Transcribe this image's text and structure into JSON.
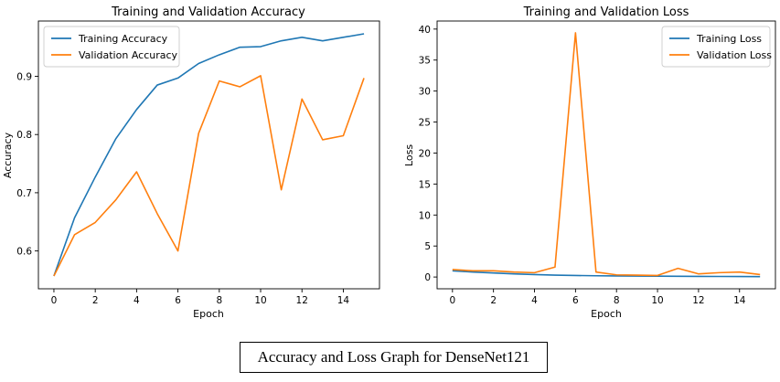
{
  "caption": "Accuracy and Loss Graph for DenseNet121",
  "colors": {
    "training": "#1f77b4",
    "validation": "#ff7f0e"
  },
  "chart_data": [
    {
      "type": "line",
      "title": "Training and Validation Accuracy",
      "xlabel": "Epoch",
      "ylabel": "Accuracy",
      "x": [
        0,
        1,
        2,
        3,
        4,
        5,
        6,
        7,
        8,
        9,
        10,
        11,
        12,
        13,
        14,
        15
      ],
      "xlim": [
        -0.75,
        15.75
      ],
      "ylim": [
        0.535,
        0.995
      ],
      "xticks": [
        0,
        2,
        4,
        6,
        8,
        10,
        12,
        14
      ],
      "xtick_labels": [
        "0",
        "2",
        "4",
        "6",
        "8",
        "10",
        "12",
        "14"
      ],
      "yticks": [
        0.6,
        0.7,
        0.8,
        0.9
      ],
      "ytick_labels": [
        "0.6",
        "0.7",
        "0.8",
        "0.9"
      ],
      "grid": false,
      "legend": "top-left",
      "series": [
        {
          "name": "Training Accuracy",
          "color": "#1f77b4",
          "values": [
            0.557,
            0.657,
            0.727,
            0.793,
            0.843,
            0.885,
            0.897,
            0.922,
            0.937,
            0.95,
            0.951,
            0.961,
            0.967,
            0.961,
            0.967,
            0.973
          ]
        },
        {
          "name": "Validation Accuracy",
          "color": "#ff7f0e",
          "values": [
            0.557,
            0.628,
            0.649,
            0.688,
            0.736,
            0.664,
            0.6,
            0.802,
            0.892,
            0.882,
            0.901,
            0.705,
            0.861,
            0.791,
            0.798,
            0.897
          ]
        }
      ]
    },
    {
      "type": "line",
      "title": "Training and Validation Loss",
      "xlabel": "Epoch",
      "ylabel": "Loss",
      "x": [
        0,
        1,
        2,
        3,
        4,
        5,
        6,
        7,
        8,
        9,
        10,
        11,
        12,
        13,
        14,
        15
      ],
      "xlim": [
        -0.75,
        15.75
      ],
      "ylim": [
        -1.9,
        41.3
      ],
      "xticks": [
        0,
        2,
        4,
        6,
        8,
        10,
        12,
        14
      ],
      "xtick_labels": [
        "0",
        "2",
        "4",
        "6",
        "8",
        "10",
        "12",
        "14"
      ],
      "yticks": [
        0,
        5,
        10,
        15,
        20,
        25,
        30,
        35,
        40
      ],
      "ytick_labels": [
        "0",
        "5",
        "10",
        "15",
        "20",
        "25",
        "30",
        "35",
        "40"
      ],
      "grid": false,
      "legend": "top-right",
      "series": [
        {
          "name": "Training Loss",
          "color": "#1f77b4",
          "values": [
            1.0,
            0.8,
            0.65,
            0.5,
            0.4,
            0.3,
            0.25,
            0.2,
            0.17,
            0.15,
            0.13,
            0.12,
            0.1,
            0.09,
            0.08,
            0.07
          ]
        },
        {
          "name": "Validation Loss",
          "color": "#ff7f0e",
          "values": [
            1.2,
            1.0,
            1.0,
            0.8,
            0.7,
            1.6,
            39.4,
            0.8,
            0.35,
            0.3,
            0.25,
            1.4,
            0.5,
            0.7,
            0.8,
            0.4
          ]
        }
      ]
    }
  ]
}
